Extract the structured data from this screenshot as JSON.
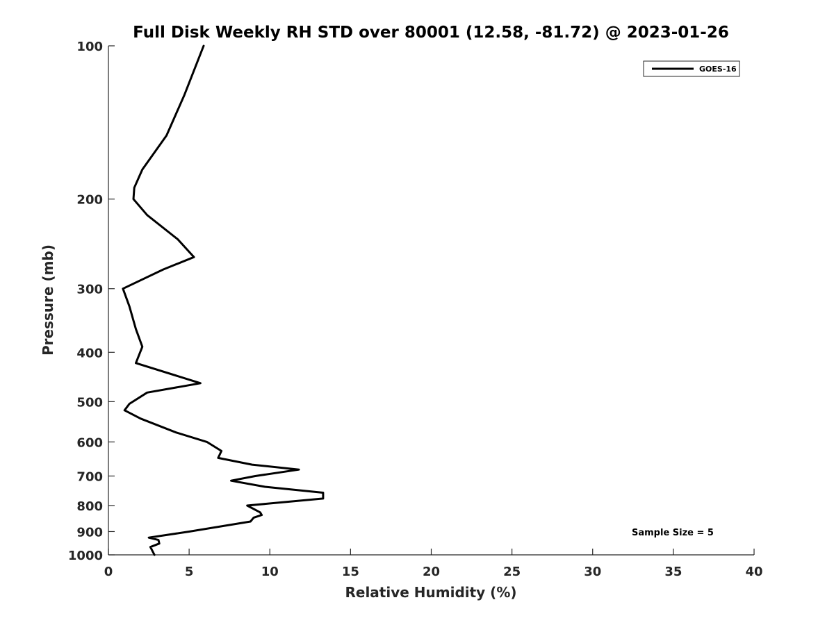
{
  "chart_data": {
    "type": "line",
    "title": "Full Disk Weekly RH STD over 80001 (12.58, -81.72) @ 2023-01-26",
    "xlabel": "Relative Humidity (%)",
    "ylabel": "Pressure (mb)",
    "xlim": [
      0,
      40
    ],
    "ylim": [
      100,
      1000
    ],
    "yscale": "log",
    "yreversed": true,
    "grid": false,
    "xticks": [
      0,
      5,
      10,
      15,
      20,
      25,
      30,
      35,
      40
    ],
    "xtick_labels": [
      "0",
      "5",
      "10",
      "15",
      "20",
      "25",
      "30",
      "35",
      "40"
    ],
    "yticks": [
      100,
      200,
      300,
      400,
      500,
      600,
      700,
      800,
      900,
      1000
    ],
    "ytick_labels": [
      "100",
      "200",
      "300",
      "400",
      "500",
      "600",
      "700",
      "800",
      "900",
      "1000"
    ],
    "legend": {
      "entries": [
        "GOES-16"
      ],
      "location": "top-right"
    },
    "annotation": "Sample Size = 5",
    "series": [
      {
        "name": "GOES-16",
        "color": "#000000",
        "points": [
          [
            5.9,
            100
          ],
          [
            4.7,
            125
          ],
          [
            3.6,
            150
          ],
          [
            2.1,
            175
          ],
          [
            1.6,
            190
          ],
          [
            1.55,
            200
          ],
          [
            2.4,
            215
          ],
          [
            4.3,
            240
          ],
          [
            5.3,
            260
          ],
          [
            3.4,
            275
          ],
          [
            0.9,
            300
          ],
          [
            1.3,
            325
          ],
          [
            1.7,
            360
          ],
          [
            2.1,
            390
          ],
          [
            1.7,
            420
          ],
          [
            5.7,
            460
          ],
          [
            2.4,
            480
          ],
          [
            1.3,
            505
          ],
          [
            1.0,
            520
          ],
          [
            2.0,
            540
          ],
          [
            4.2,
            575
          ],
          [
            6.1,
            600
          ],
          [
            7.0,
            625
          ],
          [
            6.8,
            645
          ],
          [
            8.9,
            665
          ],
          [
            11.8,
            680
          ],
          [
            9.1,
            700
          ],
          [
            7.6,
            715
          ],
          [
            9.7,
            735
          ],
          [
            13.3,
            755
          ],
          [
            13.3,
            775
          ],
          [
            8.6,
            800
          ],
          [
            9.4,
            825
          ],
          [
            9.5,
            835
          ],
          [
            9.0,
            845
          ],
          [
            8.8,
            860
          ],
          [
            5.0,
            900
          ],
          [
            2.5,
            925
          ],
          [
            3.1,
            935
          ],
          [
            3.15,
            950
          ],
          [
            2.6,
            965
          ],
          [
            2.85,
            1000
          ]
        ]
      }
    ]
  }
}
